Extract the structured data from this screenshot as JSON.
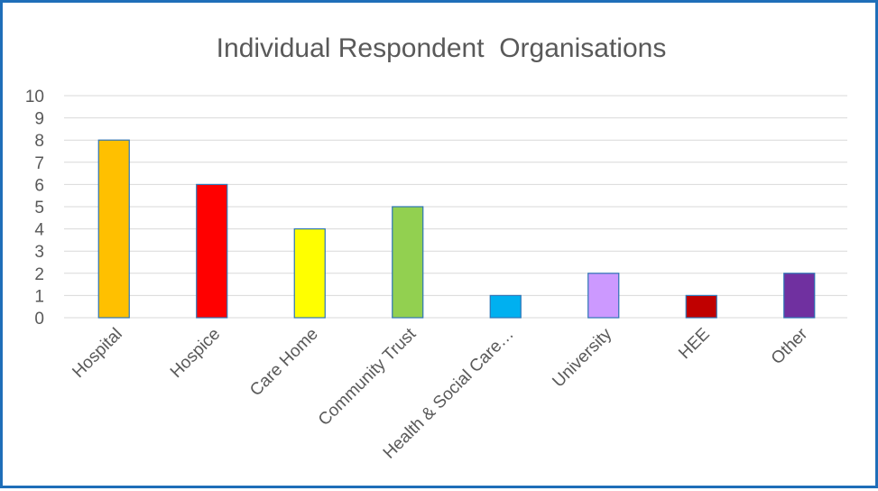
{
  "chart_data": {
    "type": "bar",
    "title": "Individual Respondent  Organisations",
    "xlabel": "",
    "ylabel": "",
    "ylim": [
      0,
      10
    ],
    "yticks": [
      0,
      1,
      2,
      3,
      4,
      5,
      6,
      7,
      8,
      9,
      10
    ],
    "grid": true,
    "legend": "none",
    "categories": [
      "Hospital",
      "Hospice",
      "Care Home",
      "Community Trust",
      "Health & Social Care…",
      "University",
      "HEE",
      "Other"
    ],
    "values": [
      8,
      6,
      4,
      5,
      1,
      2,
      1,
      2
    ],
    "colors": [
      "#FFC000",
      "#FF0000",
      "#FFFF00",
      "#92D050",
      "#00B0F0",
      "#CC99FF",
      "#C00000",
      "#7030A0"
    ],
    "bar_outline_color": "#2E75B6"
  },
  "frame_color": "#1F6EB8"
}
